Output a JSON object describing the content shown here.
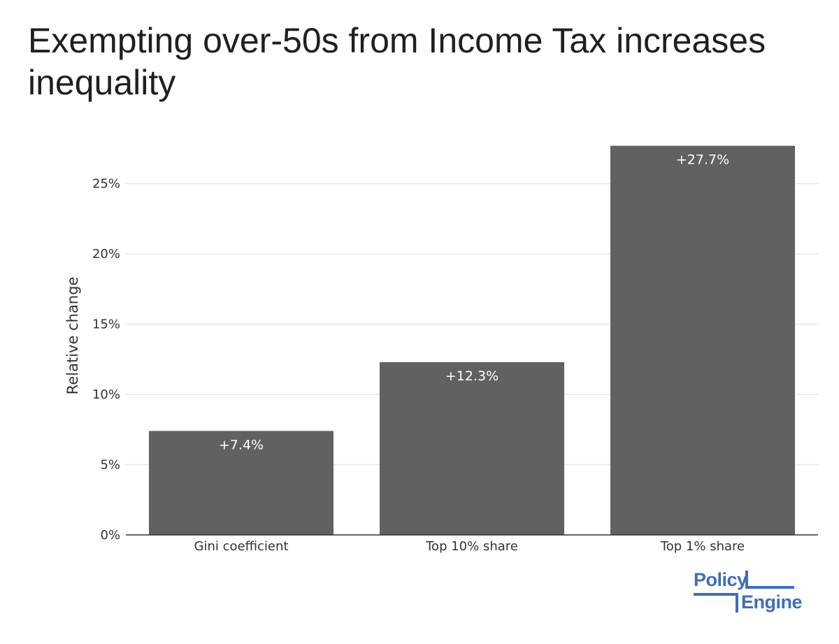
{
  "chart_data": {
    "type": "bar",
    "title": "Exempting over-50s from Income Tax increases inequality",
    "xlabel": "",
    "ylabel": "Relative change",
    "categories": [
      "Gini coefficient",
      "Top 10% share",
      "Top 1% share"
    ],
    "values": [
      7.4,
      12.3,
      27.7
    ],
    "data_labels": [
      "+7.4%",
      "+12.3%",
      "+27.7%"
    ],
    "ylim": [
      0,
      27.7
    ],
    "yticks": [
      0,
      5,
      10,
      15,
      20,
      25
    ],
    "ytick_labels": [
      "0%",
      "5%",
      "10%",
      "15%",
      "20%",
      "25%"
    ],
    "grid": true,
    "bar_color": "#616161",
    "grid_color": "#e8e8e8"
  },
  "logo": {
    "line1": "Policy",
    "line2": "Engine",
    "color": "#3f6fb8"
  }
}
